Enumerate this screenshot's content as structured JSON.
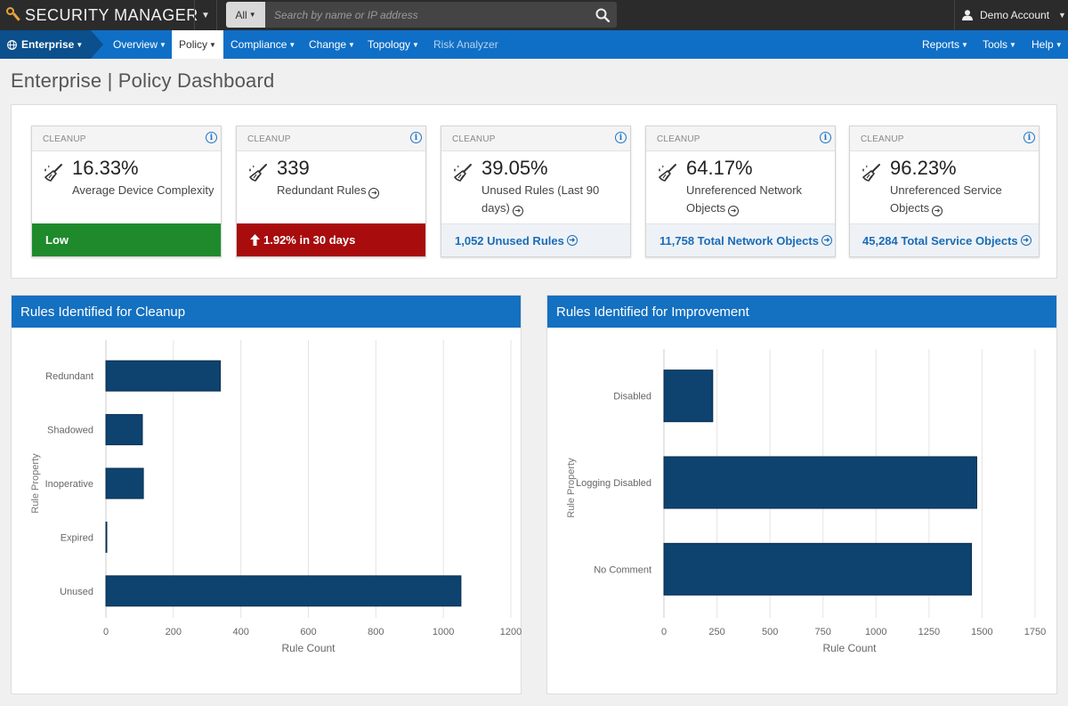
{
  "topbar": {
    "brand": "SECURITY MANAGER",
    "search_scope": "All",
    "search_placeholder": "Search by name or IP address",
    "account": "Demo Account"
  },
  "nav": {
    "enterprise": "Enterprise",
    "items": [
      "Overview",
      "Policy",
      "Compliance",
      "Change",
      "Topology",
      "Risk Analyzer"
    ],
    "right_items": [
      "Reports",
      "Tools",
      "Help"
    ],
    "active": "Policy"
  },
  "page": {
    "title": "Enterprise | Policy Dashboard"
  },
  "cards": [
    {
      "category": "CLEANUP",
      "value": "16.33%",
      "label": "Average Device Complexity",
      "footer": "Low",
      "footer_style": "green"
    },
    {
      "category": "CLEANUP",
      "value": "339",
      "label": "Redundant Rules",
      "footer": "1.92% in 30 days",
      "footer_style": "red"
    },
    {
      "category": "CLEANUP",
      "value": "39.05%",
      "label": "Unused Rules (Last 90 days)",
      "footer": "1,052 Unused Rules",
      "footer_style": "link"
    },
    {
      "category": "CLEANUP",
      "value": "64.17%",
      "label": "Unreferenced Network Objects",
      "footer": "11,758 Total Network Objects",
      "footer_style": "link"
    },
    {
      "category": "CLEANUP",
      "value": "96.23%",
      "label": "Unreferenced Service Objects",
      "footer": "45,284 Total Service Objects",
      "footer_style": "link"
    }
  ],
  "colors": {
    "bar": "#0e426f",
    "nav": "#0f6fc6",
    "panel_header": "#1470c0",
    "green": "#1e8a2c",
    "red": "#a80c0c"
  },
  "chart_data": [
    {
      "type": "bar",
      "orientation": "horizontal",
      "title": "Rules Identified for Cleanup",
      "xlabel": "Rule Count",
      "ylabel": "Rule Property",
      "categories": [
        "Redundant",
        "Shadowed",
        "Inoperative",
        "Expired",
        "Unused"
      ],
      "values": [
        339,
        108,
        111,
        2,
        1052
      ],
      "xlim": [
        0,
        1200
      ],
      "xticks": [
        0,
        200,
        400,
        600,
        800,
        1000,
        1200
      ],
      "grid": true
    },
    {
      "type": "bar",
      "orientation": "horizontal",
      "title": "Rules Identified for Improvement",
      "xlabel": "Rule Count",
      "ylabel": "Rule Property",
      "categories": [
        "Disabled",
        "Logging Disabled",
        "No Comment"
      ],
      "values": [
        230,
        1475,
        1450
      ],
      "xlim": [
        0,
        1750
      ],
      "xticks": [
        0,
        250,
        500,
        750,
        1000,
        1250,
        1500,
        1750
      ],
      "grid": true
    }
  ]
}
